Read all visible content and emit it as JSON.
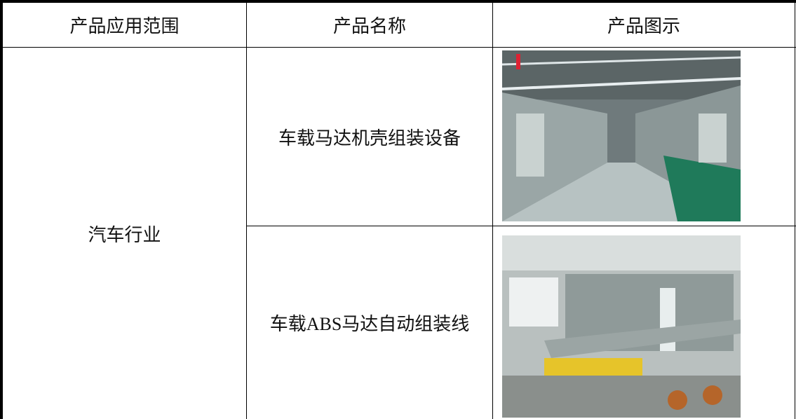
{
  "table": {
    "header": [
      "产品应用范围",
      "产品名称",
      "产品图示"
    ],
    "rows": [
      {
        "category": "汽车行业",
        "products": [
          {
            "name": "车载马达机壳组装设备"
          },
          {
            "name": "车载ABS马达自动组装线"
          }
        ]
      }
    ]
  }
}
